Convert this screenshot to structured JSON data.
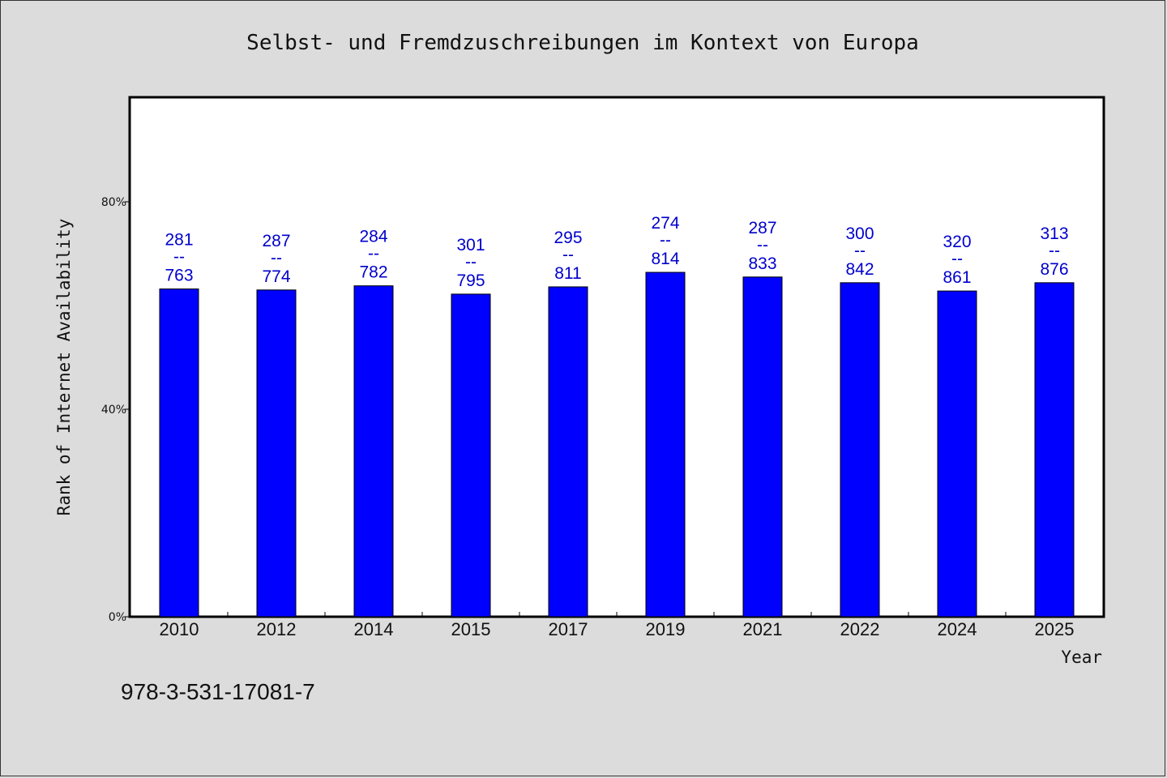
{
  "chart_data": {
    "type": "bar",
    "title": "Selbst- und Fremdzuschreibungen im Kontext von Europa",
    "xlabel": "Year",
    "ylabel": "Rank of Internet Availability",
    "categories": [
      "2010",
      "2012",
      "2014",
      "2015",
      "2017",
      "2019",
      "2021",
      "2022",
      "2024",
      "2025"
    ],
    "series": [
      {
        "values": [
          63.2,
          63.0,
          63.8,
          62.2,
          63.6,
          66.4,
          65.5,
          64.4,
          62.8,
          64.4
        ]
      }
    ],
    "bar_labels": [
      {
        "top": "281",
        "sep": "--",
        "bottom": "763"
      },
      {
        "top": "287",
        "sep": "--",
        "bottom": "774"
      },
      {
        "top": "284",
        "sep": "--",
        "bottom": "782"
      },
      {
        "top": "301",
        "sep": "--",
        "bottom": "795"
      },
      {
        "top": "295",
        "sep": "--",
        "bottom": "811"
      },
      {
        "top": "274",
        "sep": "--",
        "bottom": "814"
      },
      {
        "top": "287",
        "sep": "--",
        "bottom": "833"
      },
      {
        "top": "300",
        "sep": "--",
        "bottom": "842"
      },
      {
        "top": "320",
        "sep": "--",
        "bottom": "861"
      },
      {
        "top": "313",
        "sep": "--",
        "bottom": "876"
      }
    ],
    "yticks": [
      {
        "value": 0,
        "label": "0%"
      },
      {
        "value": 40,
        "label": "40%"
      },
      {
        "value": 80,
        "label": "80%"
      }
    ],
    "ylim": [
      0,
      100
    ],
    "grid": false,
    "bar_color": "#0000ff",
    "label_color": "#0000cc"
  },
  "footnote": "978-3-531-17081-7"
}
